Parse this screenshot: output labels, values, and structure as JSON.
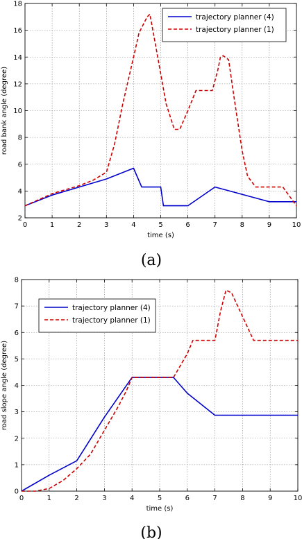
{
  "chart_data": [
    {
      "type": "line",
      "caption": "(a)",
      "xlabel": "time (s)",
      "ylabel": "road bank angle (degree)",
      "xlim": [
        0,
        10
      ],
      "ylim": [
        2,
        18
      ],
      "xticks": [
        0,
        1,
        2,
        3,
        4,
        5,
        6,
        7,
        8,
        9,
        10
      ],
      "yticks": [
        2,
        4,
        6,
        8,
        10,
        12,
        14,
        16,
        18
      ],
      "grid": true,
      "legend_position": "top-right",
      "series": [
        {
          "name": "trajectory planner (4)",
          "color": "#0000cc",
          "style": "solid",
          "x": [
            0,
            1,
            2,
            3,
            4,
            4.3,
            5,
            5.1,
            6,
            7,
            9,
            10
          ],
          "y": [
            2.9,
            3.7,
            4.3,
            4.9,
            5.7,
            4.3,
            4.3,
            2.9,
            2.9,
            4.3,
            3.2,
            3.2
          ]
        },
        {
          "name": "trajectory planner (1)",
          "color": "#cc0000",
          "style": "dashed",
          "x": [
            0,
            1,
            2,
            2.5,
            3,
            3.3,
            3.6,
            4,
            4.2,
            4.5,
            4.6,
            4.8,
            5.2,
            5.5,
            5.7,
            6,
            6.3,
            6.9,
            7.1,
            7.2,
            7.3,
            7.5,
            7.7,
            8,
            8.2,
            8.5,
            9,
            9.5,
            10
          ],
          "y": [
            2.9,
            3.8,
            4.4,
            4.8,
            5.4,
            7.5,
            10.5,
            14,
            15.8,
            17,
            17.2,
            15,
            10.5,
            8.6,
            8.6,
            10,
            11.5,
            11.5,
            13,
            14,
            14.1,
            13.8,
            11,
            7,
            5.1,
            4.3,
            4.3,
            4.3,
            2.9
          ]
        }
      ]
    },
    {
      "type": "line",
      "caption": "(b)",
      "xlabel": "time (s)",
      "ylabel": "road slope angle (degree)",
      "xlim": [
        0,
        10
      ],
      "ylim": [
        0,
        8
      ],
      "xticks": [
        0,
        1,
        2,
        3,
        4,
        5,
        6,
        7,
        8,
        9,
        10
      ],
      "yticks": [
        0,
        1,
        2,
        3,
        4,
        5,
        6,
        7,
        8
      ],
      "grid": true,
      "legend_position": "top-left",
      "series": [
        {
          "name": "trajectory planner (4)",
          "color": "#0000cc",
          "style": "solid",
          "x": [
            0,
            1,
            2,
            3,
            4,
            5,
            5.5,
            6,
            7,
            8,
            9,
            10
          ],
          "y": [
            0,
            0.6,
            1.15,
            2.8,
            4.3,
            4.3,
            4.3,
            3.7,
            2.87,
            2.87,
            2.87,
            2.87
          ],
          "x_note": "piecewise: rises to 4.3 at t=4, flat to 5.5, drops to 2.87 at t=7, flat after"
        },
        {
          "name": "trajectory planner (1)",
          "color": "#cc0000",
          "style": "dashed",
          "x": [
            0,
            0.5,
            1,
            1.5,
            2,
            2.5,
            3,
            3.5,
            3.8,
            4,
            5,
            5.5,
            6,
            6.2,
            6.8,
            7,
            7.2,
            7.4,
            7.6,
            8,
            8.4,
            9,
            10
          ],
          "y": [
            0,
            0,
            0.1,
            0.4,
            0.85,
            1.4,
            2.3,
            3.2,
            3.8,
            4.3,
            4.3,
            4.3,
            5.2,
            5.7,
            5.7,
            5.7,
            6.8,
            7.6,
            7.5,
            6.6,
            5.7,
            5.7,
            5.7
          ]
        }
      ]
    }
  ]
}
